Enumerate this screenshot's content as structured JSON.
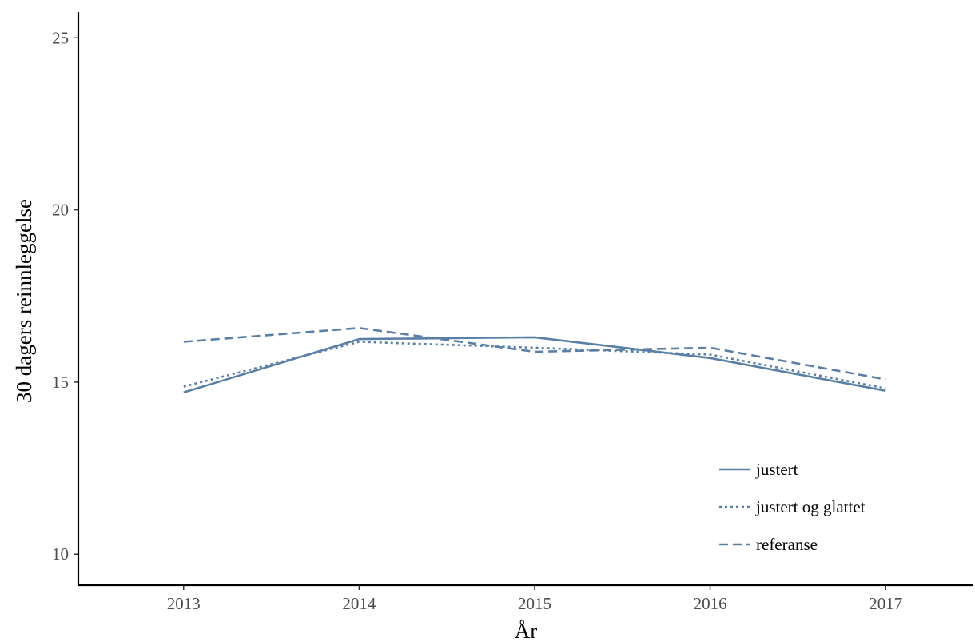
{
  "chart_data": {
    "type": "line",
    "title": "",
    "xlabel": "År",
    "ylabel": "30 dagers reinnleggelse",
    "x": [
      2013,
      2014,
      2015,
      2016,
      2017
    ],
    "xlim": [
      2012.4,
      2017.5
    ],
    "ylim": [
      9.1,
      25.75
    ],
    "y_ticks": [
      10,
      15,
      20,
      25
    ],
    "grid": false,
    "legend_position": "bottom-right",
    "series": [
      {
        "name": "justert",
        "dash": "solid",
        "values": [
          14.7,
          16.25,
          16.3,
          15.7,
          14.75
        ]
      },
      {
        "name": "justert og glattet",
        "dash": "dotted",
        "values": [
          14.87,
          16.17,
          16.0,
          15.8,
          14.82
        ]
      },
      {
        "name": "referanse",
        "dash": "dashed",
        "values": [
          16.17,
          16.57,
          15.88,
          16.0,
          15.08
        ]
      }
    ],
    "colors": {
      "series": "#5a7fa6",
      "axis": "#000000",
      "tick_label": "#4d4d4d"
    }
  }
}
